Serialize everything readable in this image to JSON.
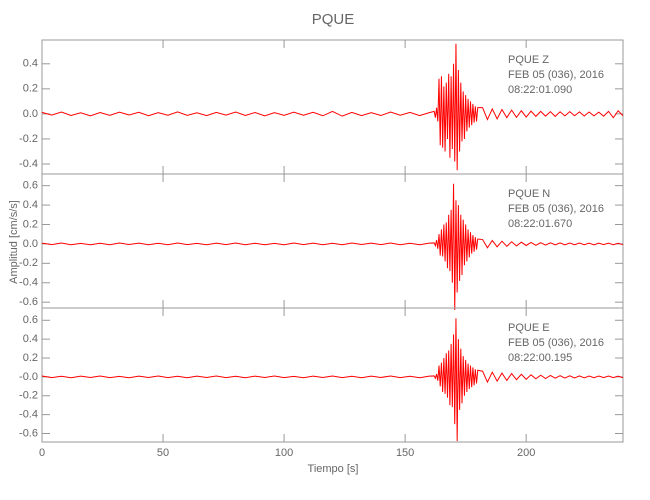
{
  "chart_data": [
    {
      "type": "line",
      "title": "PQUE",
      "annotations": [
        "PQUE   Z",
        "FEB 05 (036), 2016",
        "08:22:01.090"
      ],
      "xlim": [
        0,
        240
      ],
      "ylim": [
        -0.48,
        0.59
      ],
      "yticks": [
        -0.4,
        -0.2,
        {
          "value": 0,
          "label": "0.0"
        },
        0.2,
        0.4
      ],
      "x": [
        0,
        4,
        8,
        12,
        16,
        20,
        24,
        28,
        32,
        36,
        40,
        44,
        48,
        52,
        56,
        60,
        64,
        68,
        72,
        76,
        80,
        84,
        88,
        92,
        96,
        100,
        104,
        108,
        112,
        116,
        120,
        124,
        128,
        132,
        136,
        140,
        144,
        148,
        152,
        156,
        160,
        162,
        162.5,
        163,
        163.5,
        164,
        164.5,
        165,
        165.5,
        166,
        166.5,
        167,
        167.5,
        168,
        168.5,
        169,
        169.5,
        170,
        170.5,
        171,
        171.5,
        172,
        172.5,
        173,
        173.5,
        174,
        174.5,
        175,
        175.5,
        176,
        176.5,
        177,
        177.5,
        178,
        178.5,
        179,
        179.5,
        180,
        182,
        184,
        186,
        188,
        190,
        192,
        194,
        196,
        198,
        200,
        202,
        204,
        206,
        208,
        210,
        212,
        214,
        216,
        218,
        220,
        222,
        224,
        226,
        228,
        230,
        232,
        234,
        236,
        238,
        240
      ],
      "series": [
        {
          "color": "#ff0000",
          "values": [
            0.012,
            -0.01,
            0.015,
            -0.013,
            0.009,
            -0.016,
            0.011,
            -0.012,
            0.014,
            -0.009,
            0.013,
            -0.015,
            0.01,
            -0.011,
            0.016,
            -0.012,
            0.009,
            -0.014,
            0.012,
            -0.01,
            0.015,
            -0.013,
            0.011,
            -0.016,
            0.01,
            -0.012,
            0.014,
            -0.011,
            0.013,
            -0.015,
            0.02,
            -0.018,
            0.012,
            -0.014,
            0.01,
            -0.013,
            0.015,
            -0.011,
            0.012,
            -0.014,
            0.01,
            0.02,
            -0.03,
            0.05,
            -0.06,
            0.28,
            -0.25,
            0.3,
            -0.27,
            0.22,
            -0.3,
            0.25,
            -0.2,
            0.32,
            -0.35,
            0.3,
            -0.28,
            0.4,
            -0.38,
            0.56,
            -0.45,
            0.35,
            -0.3,
            0.25,
            -0.22,
            0.18,
            -0.2,
            0.15,
            -0.14,
            0.12,
            -0.11,
            0.1,
            -0.09,
            0.08,
            -0.07,
            0.06,
            -0.06,
            0.05,
            0.05,
            -0.045,
            0.04,
            -0.04,
            0.035,
            -0.03,
            0.03,
            -0.028,
            0.025,
            -0.025,
            0.022,
            -0.02,
            0.02,
            -0.018,
            0.018,
            -0.02,
            0.017,
            -0.016,
            0.018,
            -0.015,
            0.016,
            -0.017,
            0.015,
            -0.016,
            0.014,
            -0.018,
            0.02,
            -0.03,
            0.025,
            -0.015
          ]
        }
      ]
    },
    {
      "type": "line",
      "ylabel": "Amplitud [cm/s/s]",
      "annotations": [
        "PQUE   N",
        "FEB 05 (036), 2016",
        "08:22:01.670"
      ],
      "xlim": [
        0,
        240
      ],
      "ylim": [
        -0.66,
        0.72
      ],
      "yticks": [
        -0.6,
        -0.4,
        -0.2,
        {
          "value": 0,
          "label": "0.0"
        },
        0.2,
        0.4,
        0.6
      ],
      "x": [
        0,
        4,
        8,
        12,
        16,
        20,
        24,
        28,
        32,
        36,
        40,
        44,
        48,
        52,
        56,
        60,
        64,
        68,
        72,
        76,
        80,
        84,
        88,
        92,
        96,
        100,
        104,
        108,
        112,
        116,
        120,
        124,
        128,
        132,
        136,
        140,
        144,
        148,
        152,
        156,
        160,
        162,
        162.5,
        163,
        163.5,
        164,
        164.5,
        165,
        165.5,
        166,
        166.5,
        167,
        167.5,
        168,
        168.5,
        169,
        169.5,
        170,
        170.5,
        171,
        171.5,
        172,
        172.5,
        173,
        173.5,
        174,
        174.5,
        175,
        175.5,
        176,
        176.5,
        177,
        177.5,
        178,
        178.5,
        179,
        179.5,
        180,
        182,
        184,
        186,
        188,
        190,
        192,
        194,
        196,
        198,
        200,
        202,
        204,
        206,
        208,
        210,
        212,
        214,
        216,
        218,
        220,
        222,
        224,
        226,
        228,
        230,
        232,
        234,
        236,
        238,
        240
      ],
      "series": [
        {
          "color": "#ff0000",
          "values": [
            0.008,
            -0.007,
            0.009,
            -0.008,
            0.006,
            -0.009,
            0.007,
            -0.008,
            0.009,
            -0.006,
            0.008,
            -0.009,
            0.007,
            -0.008,
            0.009,
            -0.007,
            0.006,
            -0.008,
            0.008,
            -0.007,
            0.009,
            -0.008,
            0.007,
            -0.009,
            0.006,
            -0.008,
            0.009,
            -0.007,
            0.008,
            -0.009,
            0.007,
            -0.008,
            0.009,
            -0.006,
            0.008,
            -0.007,
            0.009,
            -0.008,
            0.007,
            -0.009,
            0.008,
            0.01,
            -0.02,
            0.04,
            -0.05,
            0.1,
            -0.12,
            0.15,
            -0.13,
            0.2,
            -0.18,
            0.22,
            -0.25,
            0.3,
            -0.28,
            0.35,
            -0.4,
            0.62,
            -0.68,
            0.45,
            -0.5,
            0.4,
            -0.38,
            0.3,
            -0.32,
            0.25,
            -0.22,
            0.2,
            -0.18,
            0.15,
            -0.14,
            0.12,
            -0.1,
            0.09,
            -0.08,
            0.07,
            -0.06,
            0.05,
            0.045,
            -0.04,
            0.035,
            -0.03,
            0.028,
            -0.025,
            0.022,
            -0.02,
            0.018,
            -0.016,
            0.015,
            -0.014,
            0.013,
            -0.012,
            0.011,
            -0.01,
            0.01,
            -0.009,
            0.009,
            -0.008,
            0.009,
            -0.008,
            0.008,
            -0.009,
            0.008,
            -0.007,
            0.008,
            -0.008,
            0.007,
            -0.008
          ]
        }
      ]
    },
    {
      "type": "line",
      "xlabel": "Tiempo [s]",
      "annotations": [
        "PQUE   E",
        "FEB 05 (036), 2016",
        "08:22:00.195"
      ],
      "xlim": [
        0,
        240
      ],
      "ylim": [
        -0.69,
        0.73
      ],
      "xticks": [
        0,
        50,
        100,
        150,
        200
      ],
      "yticks": [
        -0.6,
        -0.4,
        -0.2,
        {
          "value": 0,
          "label": "-0.0"
        },
        0.2,
        0.4,
        0.6
      ],
      "x": [
        0,
        4,
        8,
        12,
        16,
        20,
        24,
        28,
        32,
        36,
        40,
        44,
        48,
        52,
        56,
        60,
        64,
        68,
        72,
        76,
        80,
        84,
        88,
        92,
        96,
        100,
        104,
        108,
        112,
        116,
        120,
        124,
        128,
        132,
        136,
        140,
        144,
        148,
        152,
        156,
        160,
        162,
        162.5,
        163,
        163.5,
        164,
        164.5,
        165,
        165.5,
        166,
        166.5,
        167,
        167.5,
        168,
        168.5,
        169,
        169.5,
        170,
        170.5,
        171,
        171.5,
        172,
        172.5,
        173,
        173.5,
        174,
        174.5,
        175,
        175.5,
        176,
        176.5,
        177,
        177.5,
        178,
        178.5,
        179,
        179.5,
        180,
        182,
        184,
        186,
        188,
        190,
        192,
        194,
        196,
        198,
        200,
        202,
        204,
        206,
        208,
        210,
        212,
        214,
        216,
        218,
        220,
        222,
        224,
        226,
        228,
        230,
        232,
        234,
        236,
        238,
        240
      ],
      "series": [
        {
          "color": "#ff0000",
          "values": [
            0.009,
            -0.008,
            0.007,
            -0.009,
            0.008,
            -0.007,
            0.009,
            -0.008,
            0.006,
            -0.009,
            0.008,
            -0.007,
            0.009,
            -0.008,
            0.007,
            -0.009,
            0.008,
            -0.006,
            0.009,
            -0.008,
            0.007,
            -0.009,
            0.008,
            -0.007,
            0.009,
            -0.008,
            0.006,
            -0.009,
            0.008,
            -0.007,
            0.009,
            -0.008,
            0.007,
            -0.009,
            0.008,
            -0.006,
            0.009,
            -0.008,
            0.007,
            -0.009,
            0.008,
            0.01,
            -0.015,
            0.03,
            -0.04,
            0.12,
            -0.1,
            0.15,
            -0.16,
            0.2,
            -0.18,
            0.25,
            -0.22,
            0.28,
            -0.3,
            0.35,
            -0.32,
            0.45,
            -0.5,
            0.62,
            -0.68,
            0.4,
            -0.35,
            0.3,
            -0.28,
            0.22,
            -0.2,
            0.18,
            -0.16,
            0.14,
            -0.13,
            0.12,
            -0.11,
            0.1,
            -0.09,
            0.08,
            -0.07,
            0.07,
            0.06,
            -0.055,
            0.05,
            -0.045,
            0.04,
            -0.038,
            0.035,
            -0.03,
            0.028,
            -0.025,
            0.022,
            -0.02,
            0.018,
            -0.017,
            0.015,
            -0.014,
            0.013,
            -0.012,
            0.011,
            -0.011,
            0.01,
            -0.01,
            0.009,
            -0.009,
            0.009,
            -0.008,
            0.009,
            -0.008,
            0.008,
            -0.009
          ]
        }
      ]
    }
  ]
}
